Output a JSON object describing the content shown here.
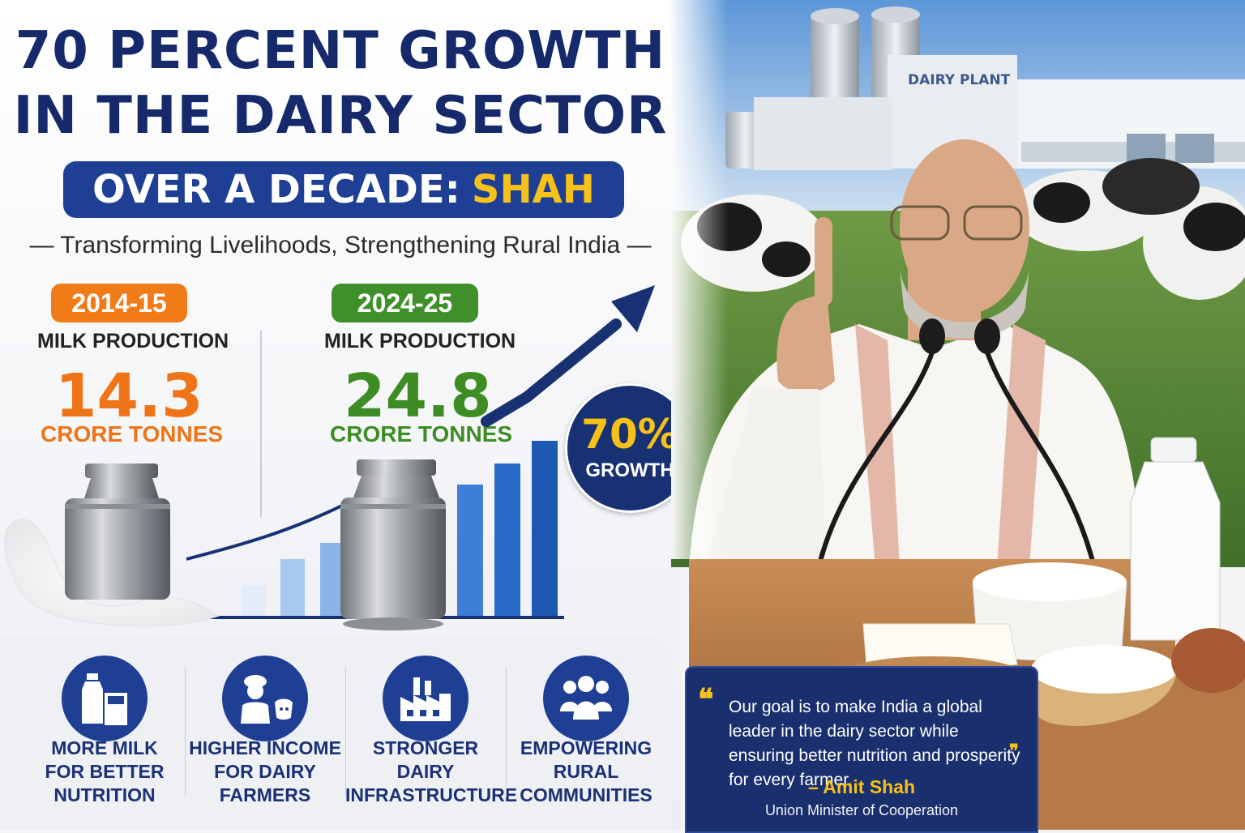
{
  "headline": {
    "line1": "70 PERCENT GROWTH",
    "line2": "IN THE DAIRY SECTOR",
    "subtitle_prefix": "OVER A DECADE:",
    "subtitle_highlight": "SHAH",
    "tagline": "— Transforming Livelihoods, Strengthening Rural India —"
  },
  "comparison": {
    "before": {
      "year": "2014-15",
      "label": "MILK PRODUCTION",
      "value": "14.3",
      "unit": "CRORE TONNES"
    },
    "after": {
      "year": "2024-25",
      "label": "MILK PRODUCTION",
      "value": "24.8",
      "unit": "CRORE TONNES"
    },
    "growth_value": "70%",
    "growth_label": "GROWTH",
    "colors": {
      "before": "#ef7418",
      "after": "#3d8d24",
      "navy": "#1e3f94",
      "gold": "#f6c21a"
    }
  },
  "benefits": [
    {
      "icon": "milk-bottle-glass-icon",
      "label": "MORE MILK\nFOR BETTER\nNUTRITION"
    },
    {
      "icon": "farmer-cow-icon",
      "label": "HIGHER INCOME\nFOR DAIRY\nFARMERS"
    },
    {
      "icon": "factory-icon",
      "label": "STRONGER\nDAIRY\nINFRASTRUCTURE"
    },
    {
      "icon": "community-people-icon",
      "label": "EMPOWERING\nRURAL\nCOMMUNITIES"
    }
  ],
  "photo": {
    "building_sign": "DAIRY PLANT"
  },
  "quote": {
    "text": "Our goal is to make India a global leader in the dairy sector while ensuring better nutrition and prosperity for every farmer.",
    "author": "– Amit Shah",
    "role": "Union Minister of Cooperation"
  }
}
